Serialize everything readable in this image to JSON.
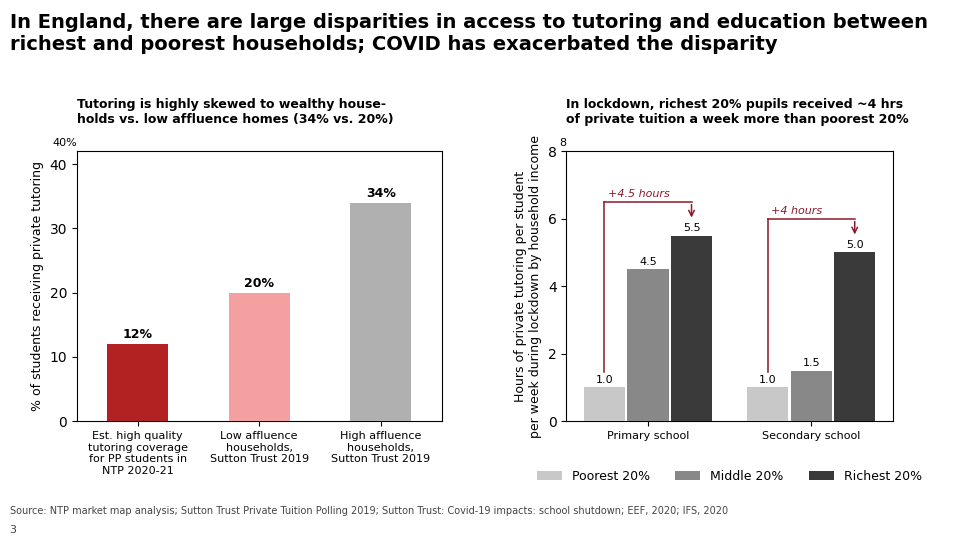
{
  "title": "In England, there are large disparities in access to tutoring and education between\nrichest and poorest households; COVID has exacerbated the disparity",
  "annotations": [
    {
      "text": "Source: NTP market map analysis; Sutton Trust Private Tuition Polling 2019; Sutton Trust: Covid-19 impacts: school shutdown; EEF, 2020; IFS, 2020"
    },
    {
      "text": "3"
    }
  ],
  "chart_data": [
    {
      "type": "bar",
      "title": "Tutoring is highly skewed to wealthy house-\nholds vs. low affluence homes (34% vs. 20%)",
      "ylabel": "% of students receiving private tutoring",
      "categories": [
        "Est. high quality\ntutoring coverage\nfor PP students in\nNTP 2020-21",
        "Low affluence\nhouseholds,\nSutton Trust 2019",
        "High affluence\nhouseholds,\nSutton Trust 2019"
      ],
      "values": [
        12,
        20,
        34
      ],
      "value_labels": [
        "12%",
        "20%",
        "34%"
      ],
      "colors": [
        "#b22222",
        "#f4a0a0",
        "#b0b0b0"
      ],
      "ylim": [
        0,
        42
      ],
      "yticks": [
        0,
        10,
        20,
        30,
        40
      ],
      "data_labels": true,
      "grid": false,
      "annotations": [
        {
          "text": "40%"
        }
      ]
    },
    {
      "type": "bar",
      "title": "In lockdown, richest 20% pupils received ~4 hrs\nof private tuition a week more than poorest 20%",
      "ylabel": "Hours of private tutoring per student\nper week during lockdown by household income",
      "categories": [
        "Primary school",
        "Secondary school"
      ],
      "series": [
        {
          "name": "Poorest 20%",
          "color": "#c8c8c8",
          "values": [
            1.0,
            1.0
          ],
          "value_labels": [
            "1.0",
            "1.0"
          ]
        },
        {
          "name": "Middle 20%",
          "color": "#888888",
          "values": [
            4.5,
            1.5
          ],
          "value_labels": [
            "4.5",
            "1.5"
          ]
        },
        {
          "name": "Richest 20%",
          "color": "#3a3a3a",
          "values": [
            5.5,
            5.0
          ],
          "value_labels": [
            "5.5",
            "5.0"
          ]
        }
      ],
      "ylim": [
        0,
        8
      ],
      "yticks": [
        0,
        2,
        4,
        6,
        8
      ],
      "data_labels": true,
      "grid": false,
      "legend": "lower center",
      "annotations": [
        {
          "text": "8"
        },
        {
          "text": "+4.5 hours",
          "category": "Primary school",
          "from": "Poorest 20%",
          "to": "Richest 20%",
          "color": "#8b1a2a"
        },
        {
          "text": "+4 hours",
          "category": "Secondary school",
          "from": "Poorest 20%",
          "to": "Richest 20%",
          "color": "#8b1a2a"
        }
      ]
    }
  ]
}
